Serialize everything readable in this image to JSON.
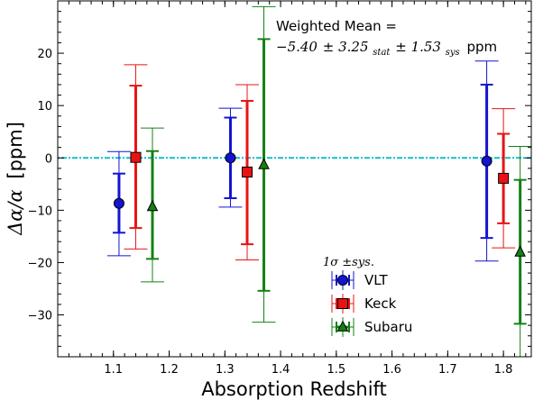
{
  "chart_data": {
    "type": "scatter",
    "xlabel": "Absorption Redshift",
    "ylabel_symbol": "Δα/α",
    "ylabel_unit": "[ppm]",
    "xlim": [
      1.0,
      1.85
    ],
    "ylim": [
      -38,
      30
    ],
    "xticks": [
      1.1,
      1.2,
      1.3,
      1.4,
      1.5,
      1.6,
      1.7,
      1.8
    ],
    "yticks": [
      -30,
      -20,
      -10,
      0,
      10,
      20
    ],
    "reference_line": 0,
    "annotation": {
      "line1": "Weighted Mean =",
      "value": "−5.40",
      "pm": "±",
      "stat": "3.25",
      "stat_sub": "stat",
      "sys": "1.53",
      "sys_sub": "sys",
      "unit": "ppm"
    },
    "legend": {
      "title": "1σ ±sys.",
      "placement": "lower-center"
    },
    "series": [
      {
        "name": "VLT",
        "color": "#1414d2",
        "marker": "circle",
        "points": [
          {
            "x": 1.11,
            "y": -8.7,
            "stat": [
              -3.0,
              -14.3
            ],
            "sys": [
              1.2,
              -18.7
            ]
          },
          {
            "x": 1.31,
            "y": 0.0,
            "stat": [
              7.7,
              -7.7
            ],
            "sys": [
              9.5,
              -9.4
            ]
          },
          {
            "x": 1.77,
            "y": -0.6,
            "stat": [
              14.0,
              -15.3
            ],
            "sys": [
              18.5,
              -19.7
            ]
          }
        ]
      },
      {
        "name": "Keck",
        "color": "#e81414",
        "marker": "square",
        "points": [
          {
            "x": 1.14,
            "y": 0.1,
            "stat": [
              13.8,
              -13.4
            ],
            "sys": [
              17.8,
              -17.4
            ]
          },
          {
            "x": 1.34,
            "y": -2.7,
            "stat": [
              10.9,
              -16.5
            ],
            "sys": [
              14.0,
              -19.5
            ]
          },
          {
            "x": 1.8,
            "y": -3.9,
            "stat": [
              4.6,
              -12.5
            ],
            "sys": [
              9.4,
              -17.2
            ]
          }
        ]
      },
      {
        "name": "Subaru",
        "color": "#148014",
        "marker": "triangle",
        "points": [
          {
            "x": 1.17,
            "y": -9.3,
            "stat": [
              1.3,
              -19.3
            ],
            "sys": [
              5.7,
              -23.7
            ]
          },
          {
            "x": 1.37,
            "y": -1.3,
            "stat": [
              22.7,
              -25.4
            ],
            "sys": [
              28.9,
              -31.4
            ]
          },
          {
            "x": 1.83,
            "y": -18.0,
            "stat": [
              -4.2,
              -31.7
            ],
            "sys": [
              2.2,
              -38.0
            ]
          }
        ]
      }
    ]
  }
}
